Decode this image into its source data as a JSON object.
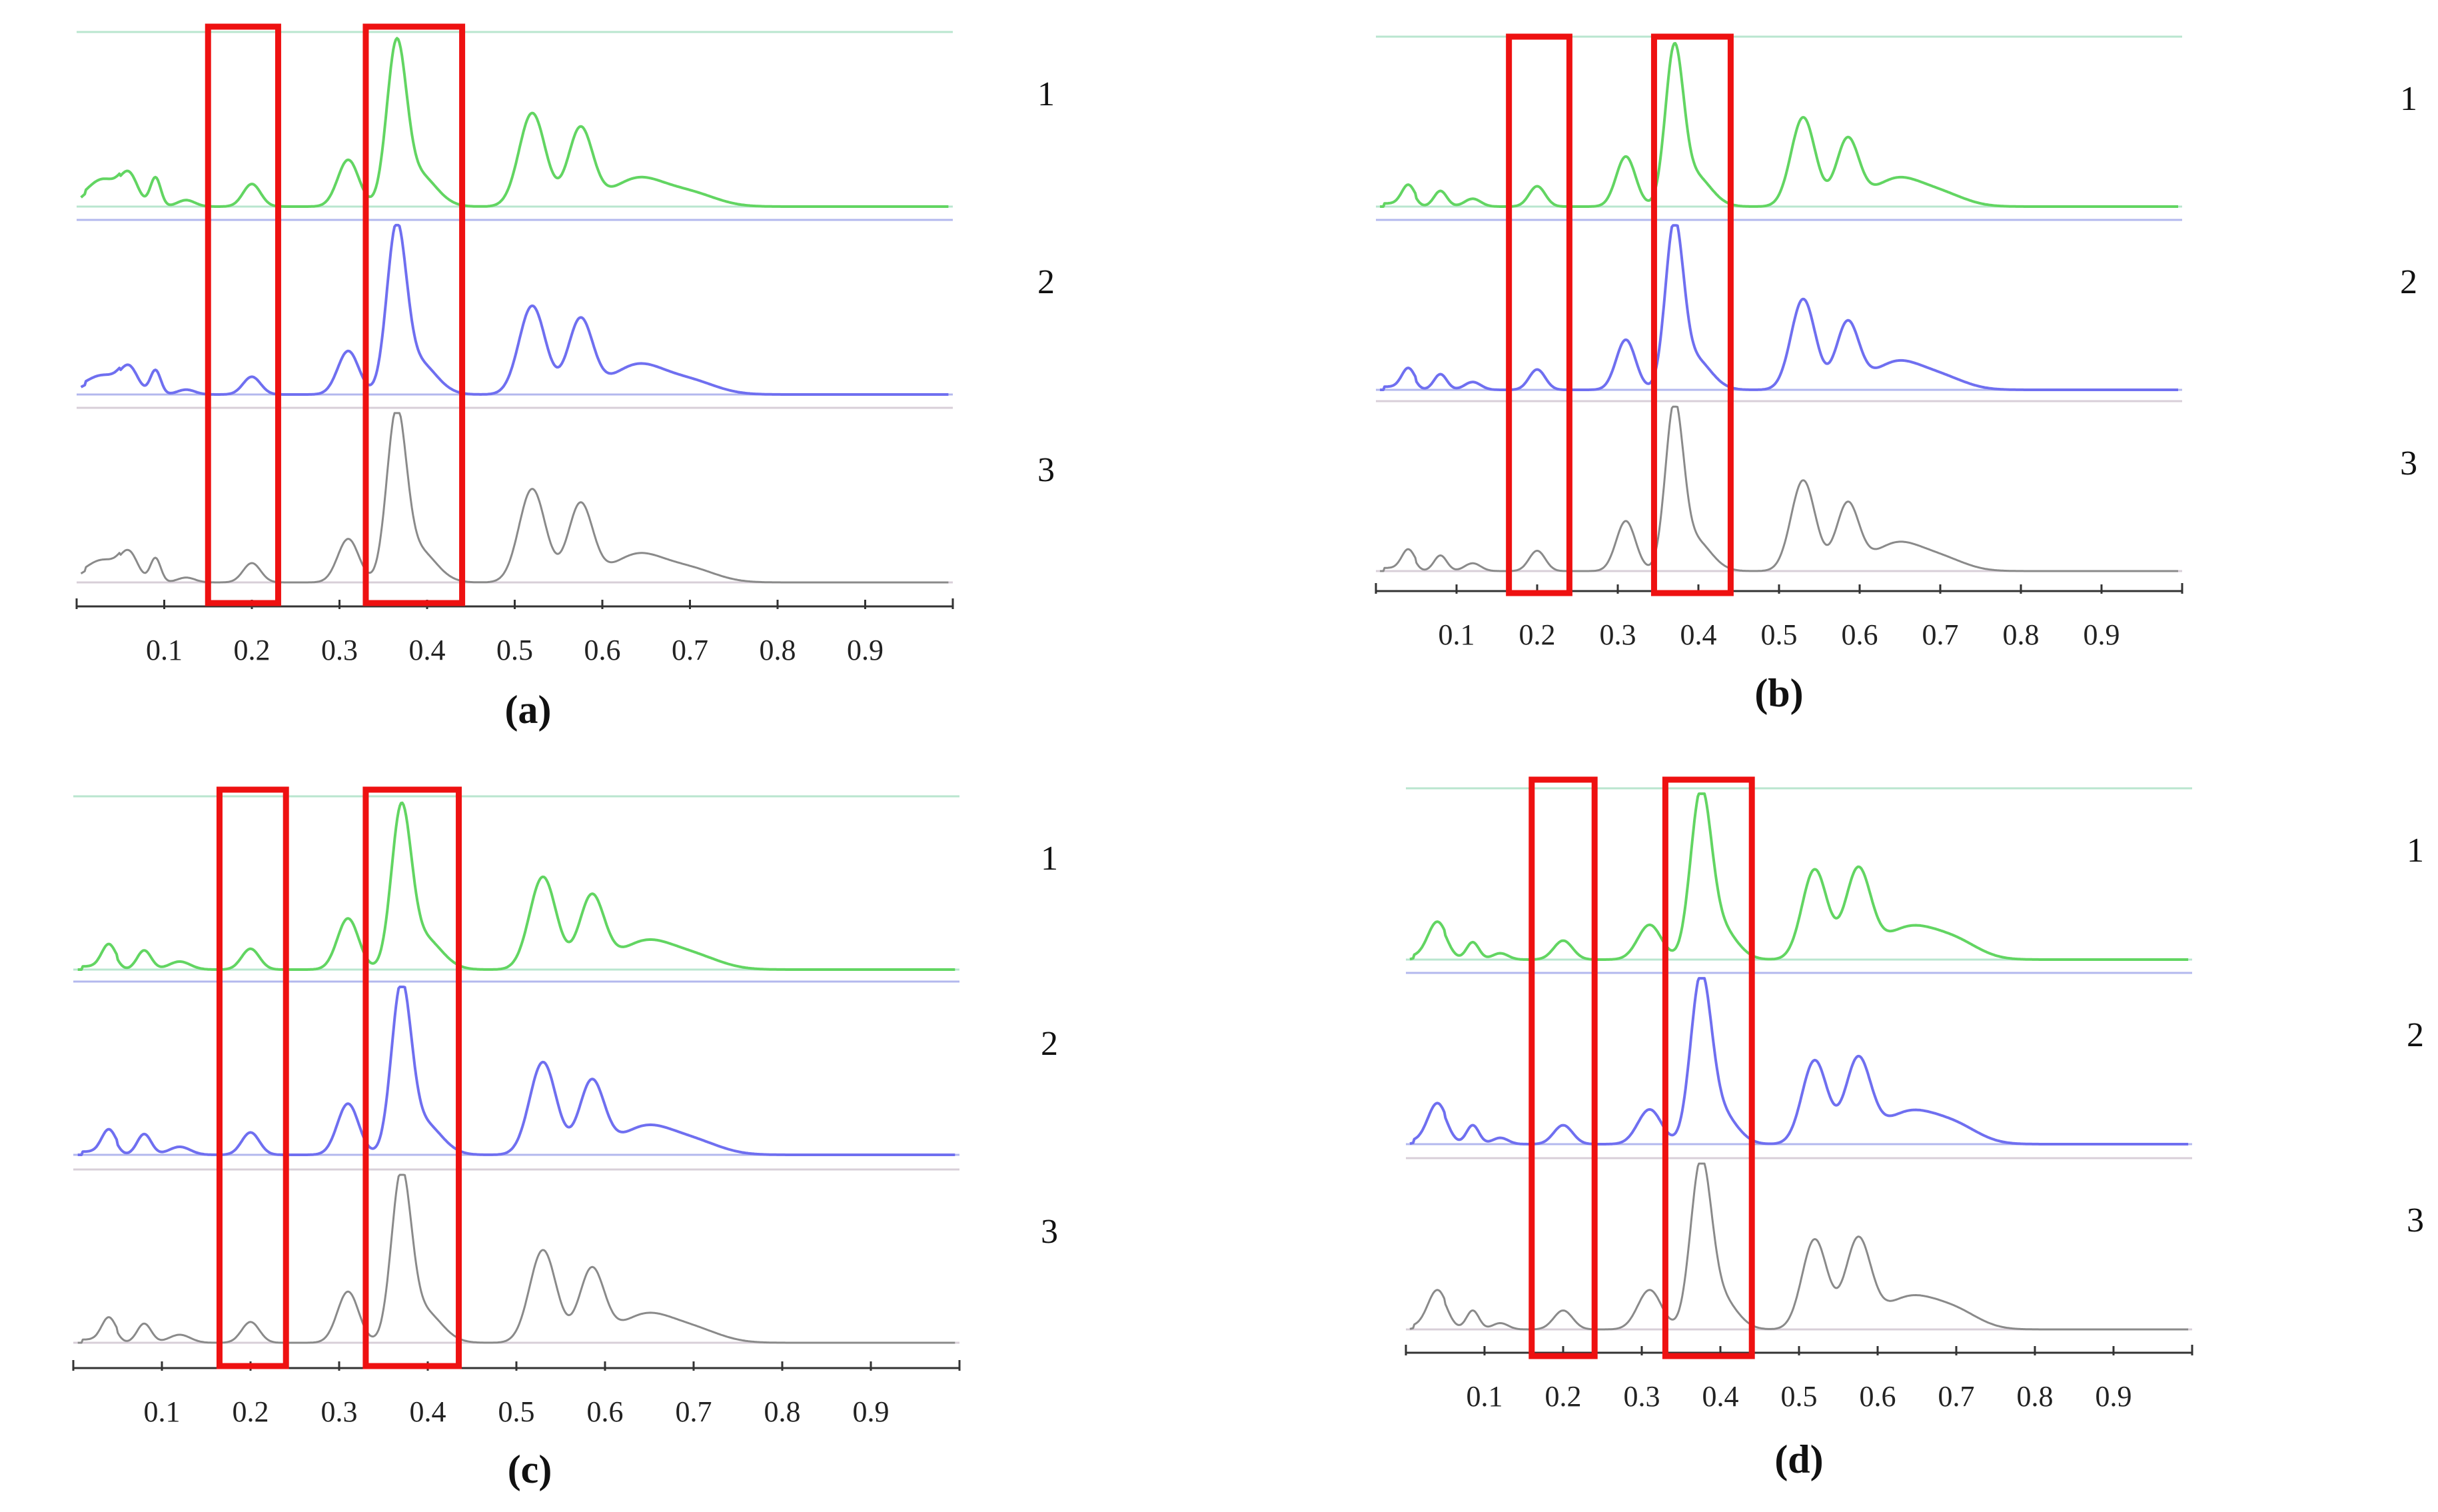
{
  "colors": {
    "track_1": "#62d562",
    "track_2": "#6f6ff0",
    "track_3": "#8a8a8a",
    "baseline_1": "#b9e6cf",
    "baseline_2": "#b3b8ee",
    "baseline_3": "#d8cfd8",
    "highlight": "#ee1111",
    "axis": "#333333"
  },
  "chart_data": [
    {
      "type": "line",
      "panel_label": "(a)",
      "x_tick_labels": [
        "0.1",
        "0.2",
        "0.3",
        "0.4",
        "0.5",
        "0.6",
        "0.7",
        "0.8",
        "0.9"
      ],
      "x_ticks": [
        0.1,
        0.2,
        0.3,
        0.4,
        0.5,
        0.6,
        0.7,
        0.8,
        0.9
      ],
      "xlim": [
        0.0,
        1.0
      ],
      "highlight_regions": [
        [
          0.15,
          0.23
        ],
        [
          0.33,
          0.44
        ]
      ],
      "series": [
        {
          "name": "1",
          "peaks": [
            [
              0.03,
              0.15,
              0.018
            ],
            [
              0.06,
              0.18,
              0.01
            ],
            [
              0.09,
              0.18,
              0.006
            ],
            [
              0.125,
              0.04,
              0.01
            ],
            [
              0.2,
              0.14,
              0.01
            ],
            [
              0.31,
              0.29,
              0.012
            ],
            [
              0.365,
              0.95,
              0.011
            ],
            [
              0.39,
              0.2,
              0.02
            ],
            [
              0.52,
              0.58,
              0.015
            ],
            [
              0.575,
              0.48,
              0.014
            ],
            [
              0.64,
              0.17,
              0.03
            ],
            [
              0.7,
              0.08,
              0.03
            ]
          ]
        },
        {
          "name": "2",
          "peaks": [
            [
              0.03,
              0.1,
              0.02
            ],
            [
              0.06,
              0.15,
              0.01
            ],
            [
              0.09,
              0.15,
              0.006
            ],
            [
              0.125,
              0.03,
              0.01
            ],
            [
              0.2,
              0.11,
              0.01
            ],
            [
              0.31,
              0.27,
              0.012
            ],
            [
              0.365,
              0.98,
              0.011
            ],
            [
              0.39,
              0.2,
              0.02
            ],
            [
              0.52,
              0.55,
              0.015
            ],
            [
              0.575,
              0.46,
              0.014
            ],
            [
              0.64,
              0.18,
              0.03
            ],
            [
              0.7,
              0.08,
              0.03
            ]
          ]
        },
        {
          "name": "3",
          "peaks": [
            [
              0.03,
              0.12,
              0.02
            ],
            [
              0.06,
              0.16,
              0.01
            ],
            [
              0.09,
              0.15,
              0.006
            ],
            [
              0.125,
              0.03,
              0.01
            ],
            [
              0.2,
              0.12,
              0.01
            ],
            [
              0.31,
              0.27,
              0.012
            ],
            [
              0.365,
              1.0,
              0.011
            ],
            [
              0.39,
              0.2,
              0.02
            ],
            [
              0.52,
              0.58,
              0.015
            ],
            [
              0.575,
              0.48,
              0.014
            ],
            [
              0.64,
              0.17,
              0.03
            ],
            [
              0.7,
              0.08,
              0.03
            ]
          ]
        }
      ]
    },
    {
      "type": "line",
      "panel_label": "(b)",
      "x_tick_labels": [
        "0.1",
        "0.2",
        "0.3",
        "0.4",
        "0.5",
        "0.6",
        "0.7",
        "0.8",
        "0.9"
      ],
      "x_ticks": [
        0.1,
        0.2,
        0.3,
        0.4,
        0.5,
        0.6,
        0.7,
        0.8,
        0.9
      ],
      "xlim": [
        0.0,
        1.0
      ],
      "highlight_regions": [
        [
          0.165,
          0.24
        ],
        [
          0.345,
          0.44
        ]
      ],
      "series": [
        {
          "name": "1",
          "peaks": [
            [
              0.04,
              0.12,
              0.008
            ],
            [
              0.08,
              0.1,
              0.008
            ],
            [
              0.12,
              0.05,
              0.01
            ],
            [
              0.2,
              0.13,
              0.01
            ],
            [
              0.31,
              0.32,
              0.012
            ],
            [
              0.37,
              0.95,
              0.011
            ],
            [
              0.395,
              0.2,
              0.02
            ],
            [
              0.53,
              0.57,
              0.015
            ],
            [
              0.585,
              0.42,
              0.014
            ],
            [
              0.645,
              0.17,
              0.03
            ],
            [
              0.7,
              0.08,
              0.03
            ]
          ]
        },
        {
          "name": "2",
          "peaks": [
            [
              0.04,
              0.12,
              0.008
            ],
            [
              0.08,
              0.1,
              0.008
            ],
            [
              0.12,
              0.05,
              0.01
            ],
            [
              0.2,
              0.13,
              0.01
            ],
            [
              0.31,
              0.32,
              0.012
            ],
            [
              0.37,
              1.0,
              0.011
            ],
            [
              0.395,
              0.2,
              0.02
            ],
            [
              0.53,
              0.58,
              0.015
            ],
            [
              0.585,
              0.42,
              0.014
            ],
            [
              0.645,
              0.17,
              0.03
            ],
            [
              0.7,
              0.08,
              0.03
            ]
          ]
        },
        {
          "name": "3",
          "peaks": [
            [
              0.04,
              0.12,
              0.008
            ],
            [
              0.08,
              0.1,
              0.008
            ],
            [
              0.12,
              0.05,
              0.01
            ],
            [
              0.2,
              0.13,
              0.01
            ],
            [
              0.31,
              0.32,
              0.012
            ],
            [
              0.37,
              1.0,
              0.011
            ],
            [
              0.395,
              0.2,
              0.02
            ],
            [
              0.53,
              0.58,
              0.015
            ],
            [
              0.585,
              0.42,
              0.014
            ],
            [
              0.645,
              0.17,
              0.03
            ],
            [
              0.7,
              0.08,
              0.03
            ]
          ]
        }
      ]
    },
    {
      "type": "line",
      "panel_label": "(c)",
      "x_tick_labels": [
        "0.1",
        "0.2",
        "0.3",
        "0.4",
        "0.5",
        "0.6",
        "0.7",
        "0.8",
        "0.9"
      ],
      "x_ticks": [
        0.1,
        0.2,
        0.3,
        0.4,
        0.5,
        0.6,
        0.7,
        0.8,
        0.9
      ],
      "xlim": [
        0.0,
        1.0
      ],
      "highlight_regions": [
        [
          0.165,
          0.24
        ],
        [
          0.33,
          0.435
        ]
      ],
      "series": [
        {
          "name": "1",
          "peaks": [
            [
              0.04,
              0.14,
              0.008
            ],
            [
              0.08,
              0.12,
              0.008
            ],
            [
              0.12,
              0.05,
              0.012
            ],
            [
              0.2,
              0.13,
              0.01
            ],
            [
              0.31,
              0.32,
              0.012
            ],
            [
              0.37,
              0.95,
              0.011
            ],
            [
              0.395,
              0.2,
              0.02
            ],
            [
              0.53,
              0.58,
              0.015
            ],
            [
              0.585,
              0.45,
              0.014
            ],
            [
              0.645,
              0.17,
              0.03
            ],
            [
              0.7,
              0.08,
              0.03
            ]
          ]
        },
        {
          "name": "2",
          "peaks": [
            [
              0.04,
              0.14,
              0.008
            ],
            [
              0.08,
              0.13,
              0.008
            ],
            [
              0.12,
              0.05,
              0.012
            ],
            [
              0.2,
              0.14,
              0.01
            ],
            [
              0.31,
              0.32,
              0.012
            ],
            [
              0.37,
              1.0,
              0.011
            ],
            [
              0.395,
              0.2,
              0.02
            ],
            [
              0.53,
              0.58,
              0.015
            ],
            [
              0.585,
              0.45,
              0.014
            ],
            [
              0.645,
              0.17,
              0.03
            ],
            [
              0.7,
              0.08,
              0.03
            ]
          ]
        },
        {
          "name": "3",
          "peaks": [
            [
              0.04,
              0.14,
              0.008
            ],
            [
              0.08,
              0.12,
              0.008
            ],
            [
              0.12,
              0.05,
              0.012
            ],
            [
              0.2,
              0.13,
              0.01
            ],
            [
              0.31,
              0.32,
              0.012
            ],
            [
              0.37,
              1.0,
              0.011
            ],
            [
              0.395,
              0.2,
              0.02
            ],
            [
              0.53,
              0.58,
              0.015
            ],
            [
              0.585,
              0.45,
              0.014
            ],
            [
              0.645,
              0.17,
              0.03
            ],
            [
              0.7,
              0.08,
              0.03
            ]
          ]
        }
      ]
    },
    {
      "type": "line",
      "panel_label": "(d)",
      "x_tick_labels": [
        "0.1",
        "0.2",
        "0.3",
        "0.4",
        "0.5",
        "0.6",
        "0.7",
        "0.8",
        "0.9"
      ],
      "x_ticks": [
        0.1,
        0.2,
        0.3,
        0.4,
        0.5,
        0.6,
        0.7,
        0.8,
        0.9
      ],
      "xlim": [
        0.0,
        1.0
      ],
      "highlight_regions": [
        [
          0.16,
          0.24
        ],
        [
          0.33,
          0.44
        ]
      ],
      "series": [
        {
          "name": "1",
          "peaks": [
            [
              0.04,
              0.22,
              0.012
            ],
            [
              0.085,
              0.11,
              0.008
            ],
            [
              0.12,
              0.04,
              0.01
            ],
            [
              0.2,
              0.12,
              0.012
            ],
            [
              0.31,
              0.22,
              0.015
            ],
            [
              0.375,
              1.0,
              0.013
            ],
            [
              0.4,
              0.2,
              0.02
            ],
            [
              0.52,
              0.57,
              0.016
            ],
            [
              0.575,
              0.55,
              0.016
            ],
            [
              0.64,
              0.2,
              0.035
            ],
            [
              0.7,
              0.1,
              0.03
            ]
          ]
        },
        {
          "name": "2",
          "peaks": [
            [
              0.04,
              0.24,
              0.012
            ],
            [
              0.085,
              0.12,
              0.008
            ],
            [
              0.12,
              0.04,
              0.01
            ],
            [
              0.2,
              0.12,
              0.012
            ],
            [
              0.31,
              0.22,
              0.015
            ],
            [
              0.375,
              1.0,
              0.013
            ],
            [
              0.4,
              0.2,
              0.02
            ],
            [
              0.52,
              0.53,
              0.016
            ],
            [
              0.575,
              0.52,
              0.016
            ],
            [
              0.64,
              0.2,
              0.035
            ],
            [
              0.7,
              0.1,
              0.03
            ]
          ]
        },
        {
          "name": "3",
          "peaks": [
            [
              0.04,
              0.23,
              0.012
            ],
            [
              0.085,
              0.12,
              0.008
            ],
            [
              0.12,
              0.04,
              0.01
            ],
            [
              0.2,
              0.12,
              0.012
            ],
            [
              0.31,
              0.25,
              0.015
            ],
            [
              0.375,
              1.0,
              0.013
            ],
            [
              0.4,
              0.2,
              0.02
            ],
            [
              0.52,
              0.57,
              0.016
            ],
            [
              0.575,
              0.55,
              0.016
            ],
            [
              0.64,
              0.2,
              0.035
            ],
            [
              0.7,
              0.1,
              0.03
            ]
          ]
        }
      ]
    }
  ]
}
